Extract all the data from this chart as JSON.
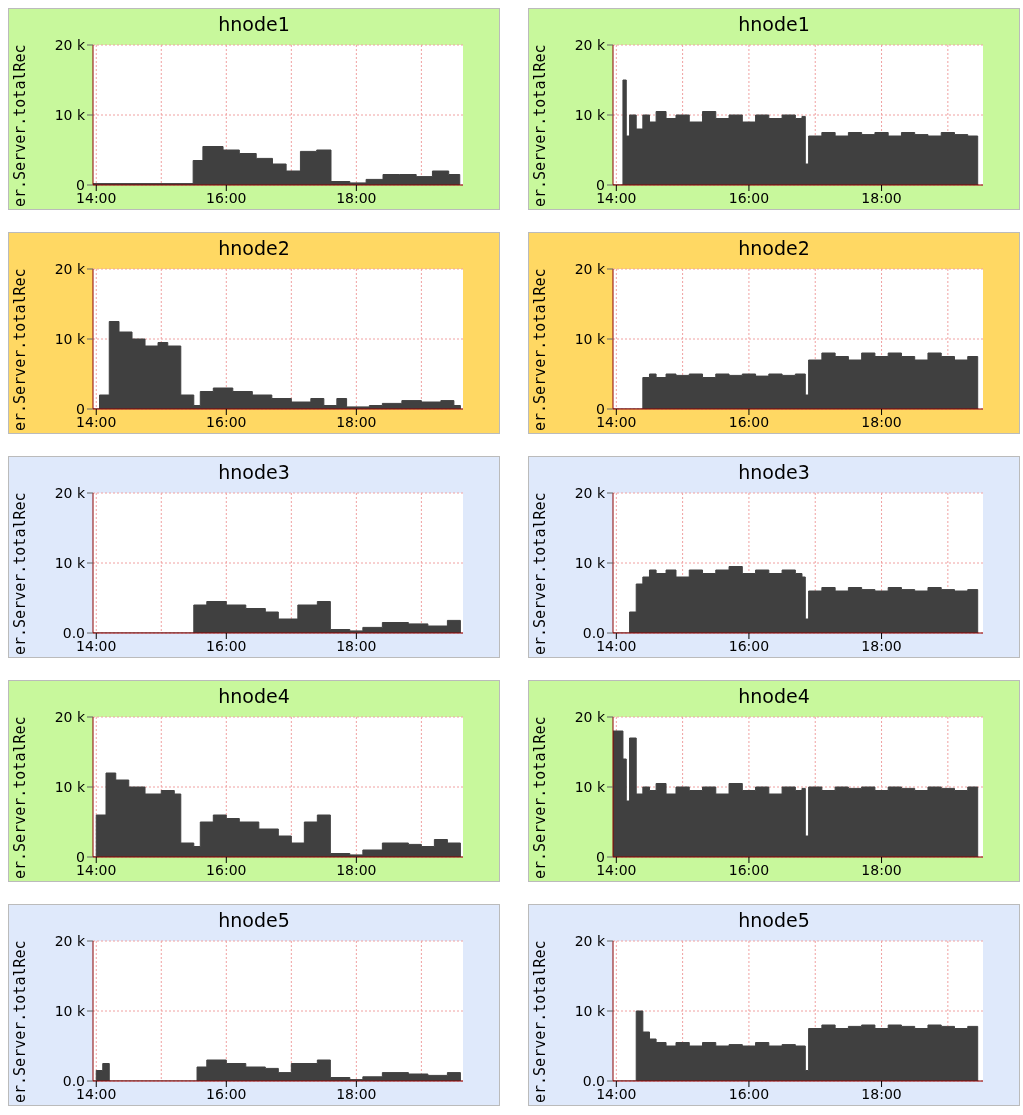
{
  "chart_data": [
    {
      "type": "area",
      "title": "hnode1",
      "ylabel": "er.Server.totalRec",
      "color": "#404040",
      "grid": true,
      "xlim": [
        13.95,
        19.64
      ],
      "ylim": [
        0,
        20000
      ],
      "xticks": [
        {
          "value": 14,
          "label": "14:00"
        },
        {
          "value": 16,
          "label": "16:00"
        },
        {
          "value": 18,
          "label": "18:00"
        }
      ],
      "yticks": [
        {
          "value": 0,
          "label": "0"
        },
        {
          "value": 10000,
          "label": "10 k"
        },
        {
          "value": 20000,
          "label": "20 k"
        }
      ],
      "x": [
        13.95,
        15.49,
        15.64,
        15.95,
        16.2,
        16.46,
        16.71,
        16.92,
        17.14,
        17.39,
        17.61,
        17.9,
        18.15,
        18.41,
        18.66,
        18.92,
        19.17,
        19.42,
        19.59
      ],
      "values": [
        200,
        3500,
        5500,
        5000,
        4500,
        3800,
        3000,
        2000,
        4800,
        5000,
        500,
        300,
        800,
        1500,
        1500,
        1200,
        2000,
        1500,
        0
      ]
    },
    {
      "type": "area",
      "title": "hnode1",
      "ylabel": "er.Server.totalRec",
      "color": "#404040",
      "grid": true,
      "xlim": [
        13.95,
        19.53
      ],
      "ylim": [
        0,
        20000
      ],
      "xticks": [
        {
          "value": 14,
          "label": "14:00"
        },
        {
          "value": 16,
          "label": "16:00"
        },
        {
          "value": 18,
          "label": "18:00"
        }
      ],
      "yticks": [
        {
          "value": 0,
          "label": "0"
        },
        {
          "value": 10000,
          "label": "10 k"
        },
        {
          "value": 20000,
          "label": "20 k"
        }
      ],
      "x": [
        13.95,
        14.1,
        14.15,
        14.2,
        14.3,
        14.4,
        14.5,
        14.6,
        14.75,
        14.9,
        15.1,
        15.3,
        15.5,
        15.7,
        15.9,
        16.1,
        16.3,
        16.5,
        16.7,
        16.8,
        16.85,
        16.9,
        17.1,
        17.3,
        17.5,
        17.7,
        17.9,
        18.1,
        18.3,
        18.5,
        18.7,
        18.9,
        19.1,
        19.3,
        19.45
      ],
      "values": [
        0,
        15000,
        7000,
        10000,
        8000,
        10000,
        9000,
        10500,
        9500,
        10000,
        9000,
        10500,
        9500,
        10000,
        9000,
        10000,
        9500,
        10000,
        9500,
        9800,
        3000,
        7000,
        7500,
        7000,
        7500,
        7200,
        7500,
        7000,
        7500,
        7200,
        7000,
        7500,
        7200,
        7000,
        0
      ]
    },
    {
      "type": "area",
      "title": "hnode2",
      "ylabel": "er.Server.totalRec",
      "color": "#404040",
      "grid": true,
      "xlim": [
        13.95,
        19.64
      ],
      "ylim": [
        0,
        20000
      ],
      "xticks": [
        {
          "value": 14,
          "label": "14:00"
        },
        {
          "value": 16,
          "label": "16:00"
        },
        {
          "value": 18,
          "label": "18:00"
        }
      ],
      "yticks": [
        {
          "value": 0,
          "label": "0"
        },
        {
          "value": 10000,
          "label": "10 k"
        },
        {
          "value": 20000,
          "label": "20 k"
        }
      ],
      "x": [
        13.95,
        14.05,
        14.2,
        14.35,
        14.55,
        14.75,
        14.95,
        15.1,
        15.3,
        15.5,
        15.6,
        15.8,
        16.1,
        16.4,
        16.7,
        17.0,
        17.3,
        17.5,
        17.7,
        17.85,
        18.2,
        18.4,
        18.7,
        19.0,
        19.3,
        19.5,
        19.6
      ],
      "values": [
        0,
        2000,
        12500,
        11000,
        10000,
        9000,
        9500,
        9000,
        2000,
        500,
        2500,
        3000,
        2500,
        2000,
        1500,
        1000,
        1500,
        500,
        1500,
        300,
        500,
        800,
        1200,
        1000,
        1200,
        500,
        0
      ]
    },
    {
      "type": "area",
      "title": "hnode2",
      "ylabel": "er.Server.totalRec",
      "color": "#404040",
      "grid": true,
      "xlim": [
        13.95,
        19.53
      ],
      "ylim": [
        0,
        20000
      ],
      "xticks": [
        {
          "value": 14,
          "label": "14:00"
        },
        {
          "value": 16,
          "label": "16:00"
        },
        {
          "value": 18,
          "label": "18:00"
        }
      ],
      "yticks": [
        {
          "value": 0,
          "label": "0"
        },
        {
          "value": 10000,
          "label": "10 k"
        },
        {
          "value": 20000,
          "label": "20 k"
        }
      ],
      "x": [
        13.95,
        14.1,
        14.15,
        14.2,
        14.3,
        14.4,
        14.5,
        14.6,
        14.75,
        14.9,
        15.1,
        15.3,
        15.5,
        15.7,
        15.9,
        16.1,
        16.3,
        16.5,
        16.7,
        16.8,
        16.85,
        16.9,
        17.1,
        17.3,
        17.5,
        17.7,
        17.9,
        18.1,
        18.3,
        18.5,
        18.7,
        18.9,
        19.1,
        19.3,
        19.45
      ],
      "values": [
        0,
        0,
        0,
        0,
        0,
        4500,
        5000,
        4500,
        5000,
        4800,
        5000,
        4500,
        5000,
        4800,
        5000,
        4700,
        5000,
        4800,
        5000,
        5000,
        2000,
        7000,
        8000,
        7500,
        7000,
        8000,
        7500,
        8000,
        7500,
        7000,
        8000,
        7500,
        7000,
        7500,
        0
      ]
    },
    {
      "type": "area",
      "title": "hnode3",
      "ylabel": "er.Server.totalRec",
      "color": "#404040",
      "grid": true,
      "xlim": [
        13.95,
        19.64
      ],
      "ylim": [
        0,
        20000
      ],
      "xticks": [
        {
          "value": 14,
          "label": "14:00"
        },
        {
          "value": 16,
          "label": "16:00"
        },
        {
          "value": 18,
          "label": "18:00"
        }
      ],
      "yticks": [
        {
          "value": 0,
          "label": "0.0"
        },
        {
          "value": 10000,
          "label": "10 k"
        },
        {
          "value": 20000,
          "label": "20 k"
        }
      ],
      "x": [
        13.95,
        15.5,
        15.7,
        16.0,
        16.3,
        16.6,
        16.8,
        17.1,
        17.4,
        17.6,
        17.9,
        18.1,
        18.4,
        18.8,
        19.1,
        19.4,
        19.6
      ],
      "values": [
        0,
        4000,
        4500,
        4000,
        3500,
        3000,
        2000,
        4000,
        4500,
        500,
        300,
        800,
        1500,
        1300,
        1000,
        1800,
        0
      ]
    },
    {
      "type": "area",
      "title": "hnode3",
      "ylabel": "er.Server.totalRec",
      "color": "#404040",
      "grid": true,
      "xlim": [
        13.95,
        19.53
      ],
      "ylim": [
        0,
        20000
      ],
      "xticks": [
        {
          "value": 14,
          "label": "14:00"
        },
        {
          "value": 16,
          "label": "16:00"
        },
        {
          "value": 18,
          "label": "18:00"
        }
      ],
      "yticks": [
        {
          "value": 0,
          "label": "0.0"
        },
        {
          "value": 10000,
          "label": "10 k"
        },
        {
          "value": 20000,
          "label": "20 k"
        }
      ],
      "x": [
        13.95,
        14.1,
        14.15,
        14.2,
        14.3,
        14.4,
        14.5,
        14.6,
        14.75,
        14.9,
        15.1,
        15.3,
        15.5,
        15.7,
        15.9,
        16.1,
        16.3,
        16.5,
        16.7,
        16.8,
        16.85,
        16.9,
        17.1,
        17.3,
        17.5,
        17.7,
        17.9,
        18.1,
        18.3,
        18.5,
        18.7,
        18.9,
        19.1,
        19.3,
        19.45
      ],
      "values": [
        0,
        0,
        0,
        3000,
        7000,
        8000,
        9000,
        8500,
        9000,
        8000,
        9000,
        8500,
        9000,
        9500,
        8500,
        9000,
        8500,
        9000,
        8500,
        8000,
        2000,
        6000,
        6500,
        6000,
        6500,
        6200,
        6000,
        6500,
        6200,
        6000,
        6500,
        6200,
        6000,
        6200,
        0
      ]
    },
    {
      "type": "area",
      "title": "hnode4",
      "ylabel": "er.Server.totalRec",
      "color": "#404040",
      "grid": true,
      "xlim": [
        13.95,
        19.64
      ],
      "ylim": [
        0,
        20000
      ],
      "xticks": [
        {
          "value": 14,
          "label": "14:00"
        },
        {
          "value": 16,
          "label": "16:00"
        },
        {
          "value": 18,
          "label": "18:00"
        }
      ],
      "yticks": [
        {
          "value": 0,
          "label": "0"
        },
        {
          "value": 10000,
          "label": "10 k"
        },
        {
          "value": 20000,
          "label": "20 k"
        }
      ],
      "x": [
        13.95,
        14.0,
        14.15,
        14.3,
        14.5,
        14.75,
        15.0,
        15.2,
        15.3,
        15.5,
        15.6,
        15.8,
        16.0,
        16.2,
        16.5,
        16.8,
        17.0,
        17.2,
        17.4,
        17.6,
        17.9,
        18.1,
        18.4,
        18.8,
        19.0,
        19.2,
        19.4,
        19.6
      ],
      "values": [
        0,
        6000,
        12000,
        11000,
        10000,
        9000,
        9500,
        9000,
        2000,
        1500,
        5000,
        6000,
        5500,
        5000,
        4000,
        3000,
        2000,
        5000,
        6000,
        500,
        300,
        1000,
        2000,
        1800,
        1500,
        2500,
        2000,
        0
      ]
    },
    {
      "type": "area",
      "title": "hnode4",
      "ylabel": "er.Server.totalRec",
      "color": "#404040",
      "grid": true,
      "xlim": [
        13.95,
        19.53
      ],
      "ylim": [
        0,
        20000
      ],
      "xticks": [
        {
          "value": 14,
          "label": "14:00"
        },
        {
          "value": 16,
          "label": "16:00"
        },
        {
          "value": 18,
          "label": "18:00"
        }
      ],
      "yticks": [
        {
          "value": 0,
          "label": "0"
        },
        {
          "value": 10000,
          "label": "10 k"
        },
        {
          "value": 20000,
          "label": "20 k"
        }
      ],
      "x": [
        13.95,
        14.1,
        14.15,
        14.2,
        14.3,
        14.4,
        14.5,
        14.6,
        14.75,
        14.9,
        15.1,
        15.3,
        15.5,
        15.7,
        15.9,
        16.1,
        16.3,
        16.5,
        16.7,
        16.8,
        16.85,
        16.9,
        17.1,
        17.3,
        17.5,
        17.7,
        17.9,
        18.1,
        18.3,
        18.5,
        18.7,
        18.9,
        19.1,
        19.3,
        19.45
      ],
      "values": [
        18000,
        14000,
        8000,
        17000,
        9000,
        10000,
        9500,
        10500,
        9000,
        10000,
        9500,
        10000,
        9000,
        10500,
        9500,
        10000,
        9000,
        10000,
        9500,
        9800,
        3000,
        10000,
        9500,
        10000,
        9800,
        10000,
        9500,
        10000,
        9800,
        9500,
        10000,
        9800,
        9500,
        10000,
        0
      ]
    },
    {
      "type": "area",
      "title": "hnode5",
      "ylabel": "er.Server.totalRec",
      "color": "#404040",
      "grid": true,
      "xlim": [
        13.95,
        19.64
      ],
      "ylim": [
        0,
        20000
      ],
      "xticks": [
        {
          "value": 14,
          "label": "14:00"
        },
        {
          "value": 16,
          "label": "16:00"
        },
        {
          "value": 18,
          "label": "18:00"
        }
      ],
      "yticks": [
        {
          "value": 0,
          "label": "0.0"
        },
        {
          "value": 10000,
          "label": "10 k"
        },
        {
          "value": 20000,
          "label": "20 k"
        }
      ],
      "x": [
        13.95,
        14.0,
        14.1,
        14.2,
        15.5,
        15.55,
        15.7,
        16.0,
        16.3,
        16.6,
        16.8,
        17.0,
        17.4,
        17.6,
        17.9,
        18.1,
        18.4,
        18.8,
        19.1,
        19.4,
        19.6
      ],
      "values": [
        0,
        1500,
        2500,
        0,
        0,
        2000,
        3000,
        2500,
        2000,
        1800,
        1200,
        2500,
        3000,
        500,
        200,
        600,
        1200,
        1000,
        800,
        1200,
        0
      ]
    },
    {
      "type": "area",
      "title": "hnode5",
      "ylabel": "er.Server.totalRec",
      "color": "#404040",
      "grid": true,
      "xlim": [
        13.95,
        19.53
      ],
      "ylim": [
        0,
        20000
      ],
      "xticks": [
        {
          "value": 14,
          "label": "14:00"
        },
        {
          "value": 16,
          "label": "16:00"
        },
        {
          "value": 18,
          "label": "18:00"
        }
      ],
      "yticks": [
        {
          "value": 0,
          "label": "0.0"
        },
        {
          "value": 10000,
          "label": "10 k"
        },
        {
          "value": 20000,
          "label": "20 k"
        }
      ],
      "x": [
        13.95,
        14.1,
        14.15,
        14.2,
        14.3,
        14.4,
        14.5,
        14.6,
        14.75,
        14.9,
        15.1,
        15.3,
        15.5,
        15.7,
        15.9,
        16.1,
        16.3,
        16.5,
        16.7,
        16.8,
        16.85,
        16.9,
        17.1,
        17.3,
        17.5,
        17.7,
        17.9,
        18.1,
        18.3,
        18.5,
        18.7,
        18.9,
        19.1,
        19.3,
        19.45
      ],
      "values": [
        0,
        0,
        0,
        0,
        10000,
        7000,
        6000,
        5500,
        5000,
        5500,
        5000,
        5500,
        5000,
        5200,
        5000,
        5500,
        5000,
        5200,
        5000,
        5000,
        1500,
        7500,
        8000,
        7500,
        7800,
        8000,
        7500,
        8000,
        7800,
        7500,
        8000,
        7800,
        7500,
        7800,
        0
      ]
    }
  ]
}
